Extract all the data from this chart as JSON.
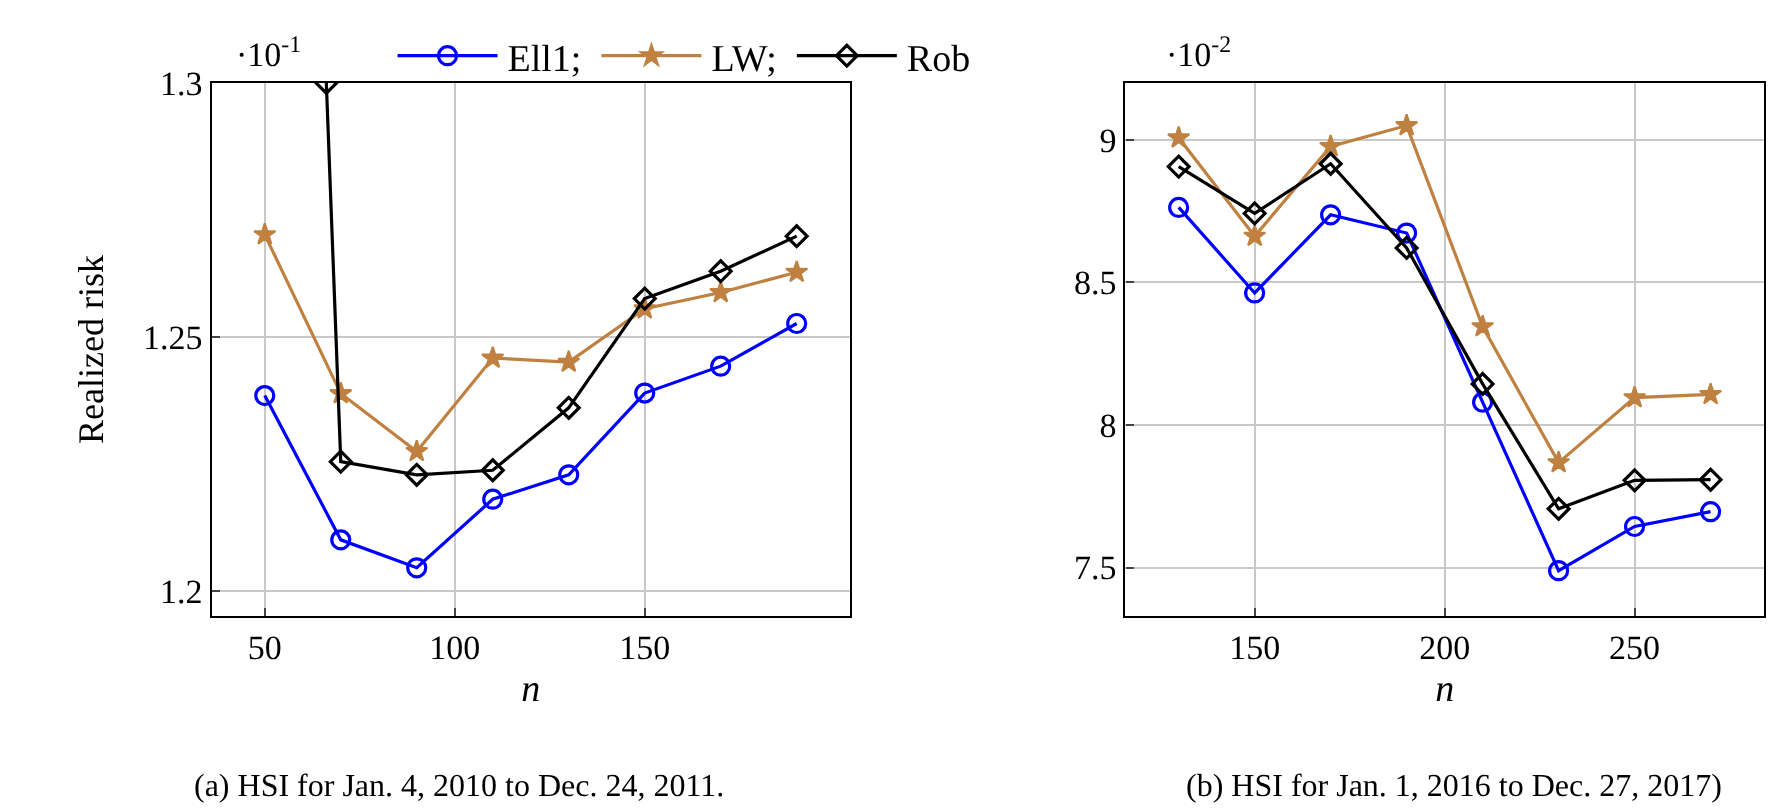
{
  "chart_data": [
    {
      "type": "line",
      "ylabel": "Realized risk",
      "xlabel": "n",
      "x": [
        50,
        70,
        90,
        110,
        130,
        150,
        170,
        190
      ],
      "xlim": [
        36,
        204
      ],
      "ylim": [
        1.195,
        1.3
      ],
      "xticks": [
        50,
        100,
        150
      ],
      "yticks": [
        1.2,
        1.25,
        1.3
      ],
      "grid": true,
      "legend": "top",
      "series": [
        {
          "name": "Ell1;",
          "color": "#0000ff",
          "marker": "circle",
          "values": [
            1.2384,
            1.21,
            1.2045,
            1.218,
            1.2228,
            1.2389,
            1.2442,
            1.2526
          ]
        },
        {
          "name": "LW;",
          "color": "#bf8040",
          "marker": "star",
          "values": [
            1.2701,
            1.2388,
            1.2274,
            1.2458,
            1.245,
            1.2555,
            1.2587,
            1.2627
          ]
        },
        {
          "name": "Rob",
          "color": "#000000",
          "marker": "diamond",
          "x": [
            66.2,
            70,
            90,
            110,
            130,
            150,
            170,
            190
          ],
          "values": [
            1.3,
            1.2254,
            1.2228,
            1.2237,
            1.236,
            1.2575,
            1.2629,
            1.2698
          ]
        }
      ],
      "annotations": [
        "·10$^{-1}$",
        "(a) HSI for Jan. 4, 2010 to Dec. 24, 2011."
      ]
    },
    {
      "type": "line",
      "xlabel": "n",
      "x": [
        130,
        150,
        170,
        190,
        210,
        230,
        250,
        270
      ],
      "xlim": [
        116,
        284
      ],
      "ylim": [
        7.33,
        9.2
      ],
      "xticks": [
        150,
        200,
        250
      ],
      "yticks": [
        7.5,
        8,
        8.5,
        9
      ],
      "grid": true,
      "legend": "top",
      "series": [
        {
          "name": "Ell1;",
          "color": "#0000ff",
          "marker": "circle",
          "values": [
            8.763,
            8.463,
            8.737,
            8.673,
            8.08,
            7.489,
            7.644,
            7.696
          ]
        },
        {
          "name": "LW;",
          "color": "#bf8040",
          "marker": "star",
          "values": [
            9.007,
            8.662,
            8.977,
            9.05,
            8.345,
            7.868,
            8.096,
            8.107
          ]
        },
        {
          "name": "Rob",
          "color": "#000000",
          "marker": "diamond",
          "values": [
            8.906,
            8.742,
            8.916,
            8.621,
            8.144,
            7.706,
            7.806,
            7.808
          ]
        }
      ],
      "annotations": [
        "·10$^{-2}$",
        "(b) HSI for Jan. 1, 2016 to Dec. 27, 2017)"
      ]
    }
  ]
}
